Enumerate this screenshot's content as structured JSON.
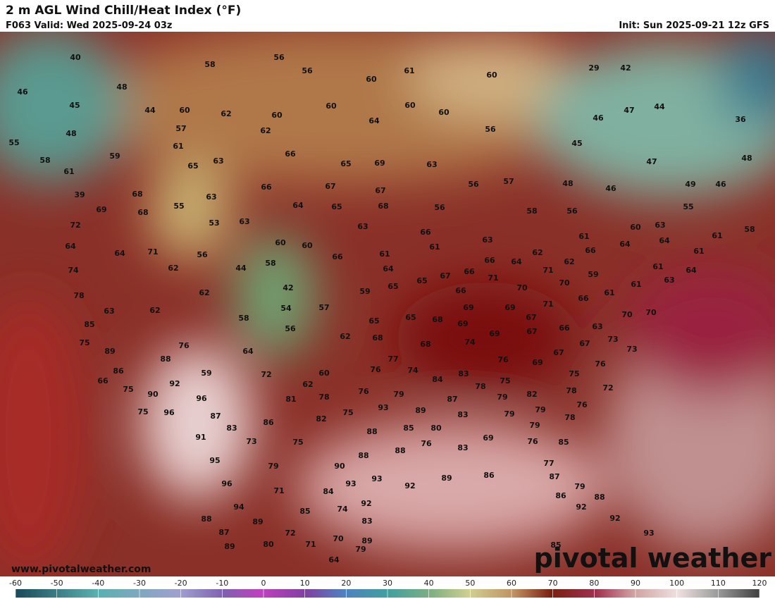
{
  "header": {
    "title": "2 m AGL Wind Chill/Heat Index (°F)",
    "valid": "F063 Valid: Wed 2025-09-24 03z",
    "init": "Init: Sun 2025-09-21 12z GFS"
  },
  "map": {
    "labels": [
      40,
      56,
      58,
      56,
      61,
      60,
      29,
      42,
      48,
      46,
      60,
      45,
      44,
      60,
      62,
      60,
      60,
      60,
      60,
      47,
      44,
      46,
      36,
      64,
      48,
      57,
      62,
      56,
      55,
      59,
      61,
      66,
      45,
      58,
      65,
      63,
      65,
      69,
      63,
      47,
      48,
      61,
      48,
      46,
      49,
      46,
      56,
      57,
      39,
      68,
      63,
      66,
      67,
      67,
      55,
      69,
      68,
      55,
      64,
      65,
      68,
      56,
      58,
      56,
      72,
      53,
      63,
      63,
      60,
      63,
      61,
      58,
      64,
      64,
      71,
      56,
      60,
      60,
      66,
      61,
      61,
      66,
      63,
      62,
      61,
      66,
      64,
      64,
      61,
      74,
      62,
      44,
      58,
      64,
      66,
      66,
      64,
      71,
      62,
      59,
      61,
      64,
      67,
      65,
      71,
      70,
      70,
      61,
      61,
      63,
      78,
      62,
      42,
      59,
      65,
      66,
      54,
      57,
      63,
      62,
      69,
      69,
      71,
      66,
      70,
      70,
      85,
      58,
      56,
      65,
      65,
      68,
      69,
      67,
      66,
      63,
      75,
      62,
      68,
      69,
      67,
      73,
      89,
      76,
      64,
      68,
      74,
      67,
      67,
      73,
      88,
      59,
      77,
      76,
      69,
      76,
      86,
      72,
      60,
      76,
      74,
      83,
      75,
      66,
      92,
      62,
      84,
      78,
      75,
      82,
      78,
      72,
      75,
      90,
      96,
      81,
      78,
      76,
      79,
      87,
      79,
      76,
      75,
      96,
      87,
      75,
      93,
      89,
      83,
      79,
      79,
      78,
      83,
      86,
      82,
      88,
      85,
      80,
      79,
      91,
      73,
      75,
      76,
      69,
      76,
      85,
      88,
      83,
      95,
      79,
      90,
      88,
      77,
      96,
      71,
      84,
      93,
      93,
      92,
      89,
      86,
      87,
      79,
      94,
      85,
      74,
      92,
      86,
      88,
      92,
      88,
      89,
      83,
      92,
      87,
      72,
      71,
      70,
      89,
      93,
      89,
      80,
      79,
      85,
      64
    ]
  },
  "footer": {
    "url": "www.pivotalweather.com",
    "logo": "pivotal weather"
  },
  "colorbar": {
    "ticks": [
      -60,
      -50,
      -40,
      -30,
      -20,
      -10,
      0,
      10,
      20,
      30,
      40,
      50,
      60,
      70,
      80,
      90,
      100,
      110,
      120
    ]
  }
}
